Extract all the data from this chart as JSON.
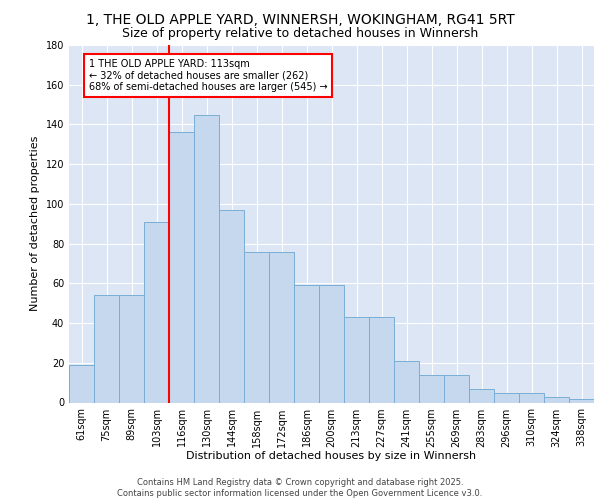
{
  "title_line1": "1, THE OLD APPLE YARD, WINNERSH, WOKINGHAM, RG41 5RT",
  "title_line2": "Size of property relative to detached houses in Winnersh",
  "categories": [
    "61sqm",
    "75sqm",
    "89sqm",
    "103sqm",
    "116sqm",
    "130sqm",
    "144sqm",
    "158sqm",
    "172sqm",
    "186sqm",
    "200sqm",
    "213sqm",
    "227sqm",
    "241sqm",
    "255sqm",
    "269sqm",
    "283sqm",
    "296sqm",
    "310sqm",
    "324sqm",
    "338sqm"
  ],
  "values": [
    19,
    54,
    54,
    91,
    136,
    145,
    97,
    76,
    76,
    59,
    59,
    43,
    43,
    21,
    14,
    14,
    7,
    5,
    5,
    3,
    2
  ],
  "bar_color": "#c5d8ed",
  "bar_edge_color": "#7aaed6",
  "bg_color": "#dce6f5",
  "grid_color": "#ffffff",
  "ylabel": "Number of detached properties",
  "xlabel": "Distribution of detached houses by size in Winnersh",
  "ylim": [
    0,
    180
  ],
  "yticks": [
    0,
    20,
    40,
    60,
    80,
    100,
    120,
    140,
    160,
    180
  ],
  "vline_x_idx": 4,
  "vline_color": "red",
  "annotation_text": "1 THE OLD APPLE YARD: 113sqm\n← 32% of detached houses are smaller (262)\n68% of semi-detached houses are larger (545) →",
  "footer_text": "Contains HM Land Registry data © Crown copyright and database right 2025.\nContains public sector information licensed under the Open Government Licence v3.0.",
  "title_fontsize": 10,
  "subtitle_fontsize": 9,
  "axis_label_fontsize": 8,
  "tick_fontsize": 7,
  "annotation_fontsize": 7,
  "footer_fontsize": 6
}
